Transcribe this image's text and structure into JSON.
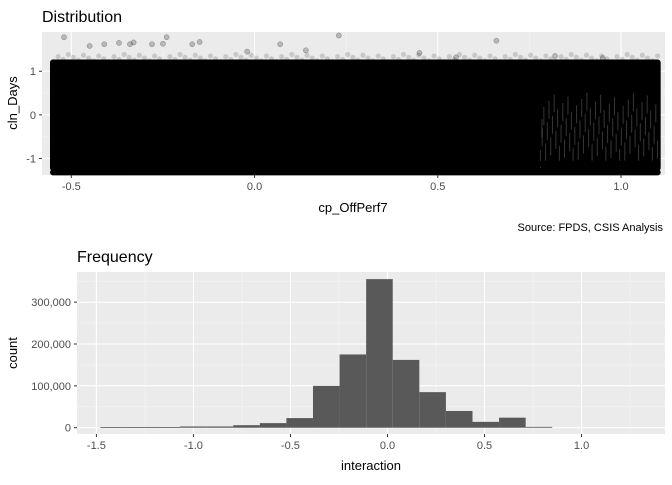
{
  "chart_data": [
    {
      "type": "scatter",
      "title": "Distribution",
      "xlabel": "cp_OffPerf7",
      "ylabel": "cln_Days",
      "caption": "Source: FPDS, CSIS Analysis",
      "xlim": [
        -0.58,
        1.12
      ],
      "ylim": [
        -1.38,
        1.9
      ],
      "x_ticks": [
        -0.5,
        0.0,
        0.5,
        1.0
      ],
      "x_tick_labels": [
        "-0.5",
        "0.0",
        "0.5",
        "1.0"
      ],
      "y_ticks": [
        -1,
        0,
        1
      ],
      "y_tick_labels": [
        "-1",
        "0",
        "1"
      ],
      "grid": true,
      "point_color": "#000000",
      "point_alpha": 0.15,
      "dense_region": {
        "x": [
          -0.55,
          1.1
        ],
        "y": [
          -1.22,
          1.2
        ]
      },
      "bands": [
        {
          "y": -1.32,
          "x": [
            -0.55,
            1.1
          ]
        },
        {
          "y": -1.12,
          "x": [
            -0.55,
            1.1
          ]
        }
      ],
      "outliers": [
        {
          "x": -0.52,
          "y": 1.78
        },
        {
          "x": -0.45,
          "y": 1.58
        },
        {
          "x": -0.41,
          "y": 1.62
        },
        {
          "x": -0.37,
          "y": 1.65
        },
        {
          "x": -0.34,
          "y": 1.62
        },
        {
          "x": -0.33,
          "y": 1.66
        },
        {
          "x": -0.28,
          "y": 1.62
        },
        {
          "x": -0.25,
          "y": 1.63
        },
        {
          "x": -0.24,
          "y": 1.78
        },
        {
          "x": -0.17,
          "y": 1.62
        },
        {
          "x": -0.15,
          "y": 1.67
        },
        {
          "x": 0.07,
          "y": 1.62
        },
        {
          "x": 0.23,
          "y": 1.82
        },
        {
          "x": 0.66,
          "y": 1.7
        },
        {
          "x": -0.02,
          "y": 1.45
        },
        {
          "x": 0.14,
          "y": 1.48
        },
        {
          "x": 0.45,
          "y": 1.42
        },
        {
          "x": 0.82,
          "y": 1.35
        },
        {
          "x": 0.95,
          "y": 1.3
        },
        {
          "x": 0.55,
          "y": 1.32
        }
      ]
    },
    {
      "type": "bar",
      "title": "Frequency",
      "xlabel": "interaction",
      "ylabel": "count",
      "xlim": [
        -1.6,
        1.43
      ],
      "ylim": [
        -15000,
        372000
      ],
      "x_ticks": [
        -1.5,
        -1.0,
        -0.5,
        0.0,
        0.5,
        1.0
      ],
      "x_tick_labels": [
        "-1.5",
        "-1.0",
        "-0.5",
        "0.0",
        "0.5",
        "1.0"
      ],
      "y_ticks": [
        0,
        100000,
        200000,
        300000
      ],
      "y_tick_labels": [
        "0",
        "100,000",
        "200,000",
        "300,000"
      ],
      "grid": true,
      "bar_color": "#595959",
      "bin_width": 0.137,
      "bins": [
        {
          "start": -1.48,
          "count": 1500
        },
        {
          "start": -1.343,
          "count": 1500
        },
        {
          "start": -1.206,
          "count": 1500
        },
        {
          "start": -1.069,
          "count": 3000
        },
        {
          "start": -0.932,
          "count": 3000
        },
        {
          "start": -0.795,
          "count": 6000
        },
        {
          "start": -0.658,
          "count": 11000
        },
        {
          "start": -0.521,
          "count": 23000
        },
        {
          "start": -0.384,
          "count": 100000
        },
        {
          "start": -0.247,
          "count": 175000
        },
        {
          "start": -0.11,
          "count": 355000
        },
        {
          "start": 0.027,
          "count": 162000
        },
        {
          "start": 0.164,
          "count": 85000
        },
        {
          "start": 0.301,
          "count": 40000
        },
        {
          "start": 0.438,
          "count": 14000
        },
        {
          "start": 0.575,
          "count": 24000
        },
        {
          "start": 0.712,
          "count": 2000
        }
      ]
    }
  ]
}
